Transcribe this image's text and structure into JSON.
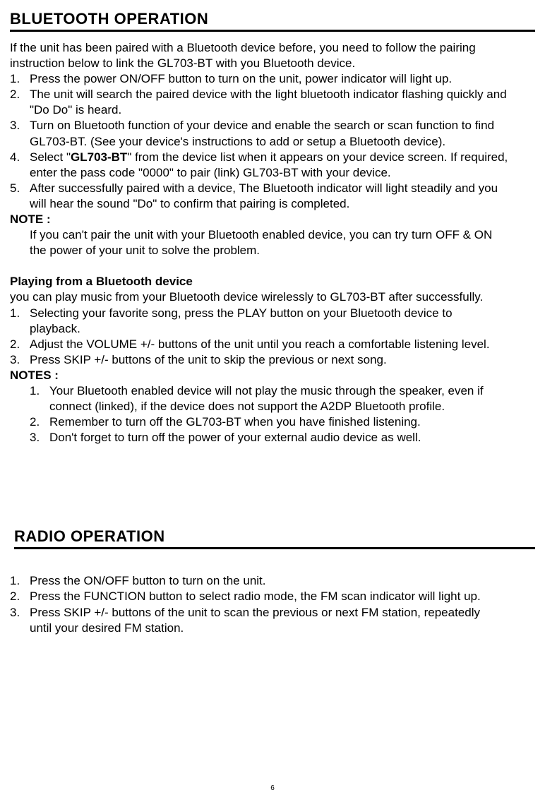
{
  "bluetooth": {
    "title": "BLUETOOTH OPERATION",
    "intro_l1": "If the unit has been paired with a Bluetooth device before, you need to follow the pairing",
    "intro_l2": "instruction below to link the GL703-BT with you Bluetooth device.",
    "steps": {
      "s1": "Press the power ON/OFF button to turn on the unit, power indicator will light up.",
      "s2a": "The unit will search the paired device with the light bluetooth indicator flashing quickly and",
      "s2b": "\"Do Do\" is heard.",
      "s3a": "Turn on Bluetooth function of your device and enable the search or scan function to find",
      "s3b": "GL703-BT. (See your device's instructions to add or setup a Bluetooth device).",
      "s4a_pre": "Select \"",
      "s4a_bold": "GL703-BT",
      "s4a_post": "\" from the device list when it appears on your device screen. If required,",
      "s4b": "enter the pass code \"0000\" to pair (link) GL703-BT with your device.",
      "s5a": "After successfully paired with a device, The Bluetooth indicator will light steadily and you",
      "s5b": "will hear the sound \"Do\" to confirm that pairing is completed."
    },
    "note_label": "NOTE :",
    "note_l1": "If you can't pair the unit with your Bluetooth enabled device, you can try turn OFF & ON",
    "note_l2": "the power of your unit to solve the problem.",
    "play_heading": "Playing from a Bluetooth device",
    "play_intro": "you can play music from your Bluetooth device wirelessly to GL703-BT after successfully.",
    "play_steps": {
      "p1a": "Selecting your favorite song, press the PLAY button on your Bluetooth device to",
      "p1b": "playback.",
      "p2": "Adjust the VOLUME +/- buttons of the unit until you reach a comfortable listening level.",
      "p3": "Press SKIP +/- buttons of the unit to skip the previous or next song."
    },
    "notes_label": "NOTES :",
    "notes_items": {
      "n1a": "Your Bluetooth enabled device will not play the music through the speaker, even if",
      "n1b": "connect (linked), if the device does not support the A2DP Bluetooth profile.",
      "n2": "Remember to turn off the GL703-BT when you have finished listening.",
      "n3": "Don't forget to turn off the power of your external audio device as well."
    }
  },
  "radio": {
    "title": "RADIO OPERATION",
    "steps": {
      "r1": "Press the ON/OFF button to turn on the unit.",
      "r2": "Press the FUNCTION button to select radio mode, the FM scan indicator will light up.",
      "r3a": "Press SKIP +/- buttons of the unit to scan the previous or next FM station, repeatedly",
      "r3b": "until your desired FM station."
    }
  },
  "page_number": "6",
  "colors": {
    "text": "#000000",
    "bg": "#ffffff",
    "rule": "#000000"
  },
  "typography": {
    "title_fontsize": 22,
    "body_fontsize": 17,
    "pagenum_fontsize": 10,
    "family": "Arial"
  }
}
